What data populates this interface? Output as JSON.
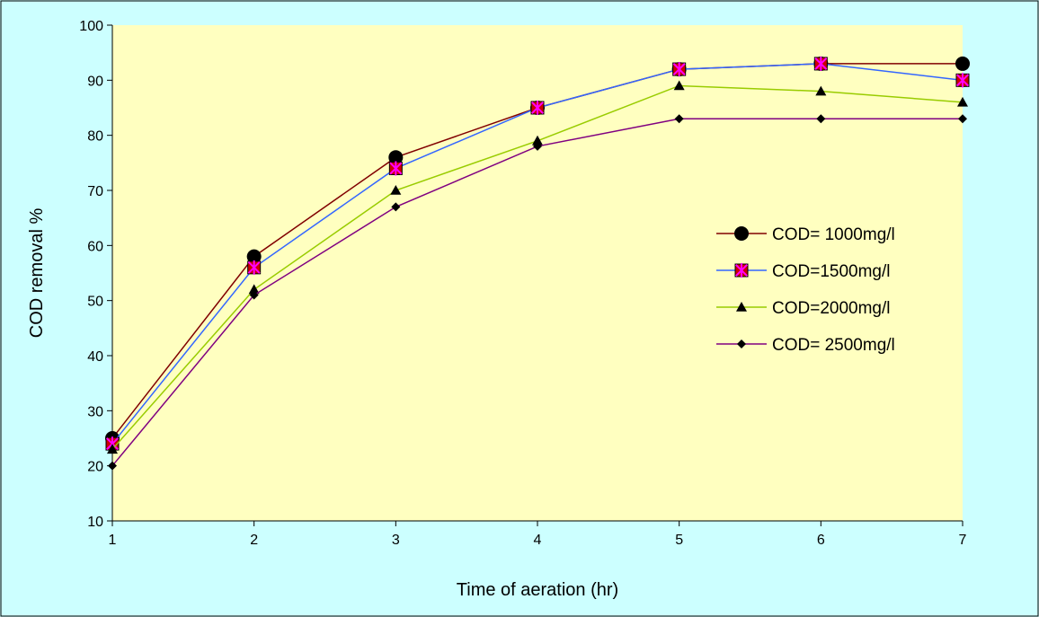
{
  "chart_data": {
    "type": "line",
    "title": "",
    "xlabel": "Time of aeration (hr)",
    "ylabel": "COD removal %",
    "x": [
      1,
      2,
      3,
      4,
      5,
      6,
      7
    ],
    "xlim": [
      1,
      7
    ],
    "ylim": [
      10,
      100
    ],
    "yticks": [
      10,
      20,
      30,
      40,
      50,
      60,
      70,
      80,
      90,
      100
    ],
    "xticks": [
      1,
      2,
      3,
      4,
      5,
      6,
      7
    ],
    "grid": false,
    "legend_position": "right",
    "plot_background": "#ffffc0",
    "page_background": "#ccffff",
    "series": [
      {
        "name": "COD= 1000mg/l",
        "values": [
          25,
          58,
          76,
          85,
          92,
          93,
          93
        ],
        "line_color": "#800000",
        "marker": "circle",
        "marker_color": "#000000"
      },
      {
        "name": "COD=1500mg/l",
        "values": [
          24,
          56,
          74,
          85,
          92,
          93,
          90
        ],
        "line_color": "#3366ff",
        "marker": "square-star",
        "marker_color": "#ff00ff"
      },
      {
        "name": "COD=2000mg/l",
        "values": [
          23,
          52,
          70,
          79,
          89,
          88,
          86
        ],
        "line_color": "#99cc00",
        "marker": "triangle",
        "marker_color": "#000000"
      },
      {
        "name": "COD= 2500mg/l",
        "values": [
          20,
          51,
          67,
          78,
          83,
          83,
          83
        ],
        "line_color": "#800080",
        "marker": "diamond",
        "marker_color": "#000000"
      }
    ]
  }
}
